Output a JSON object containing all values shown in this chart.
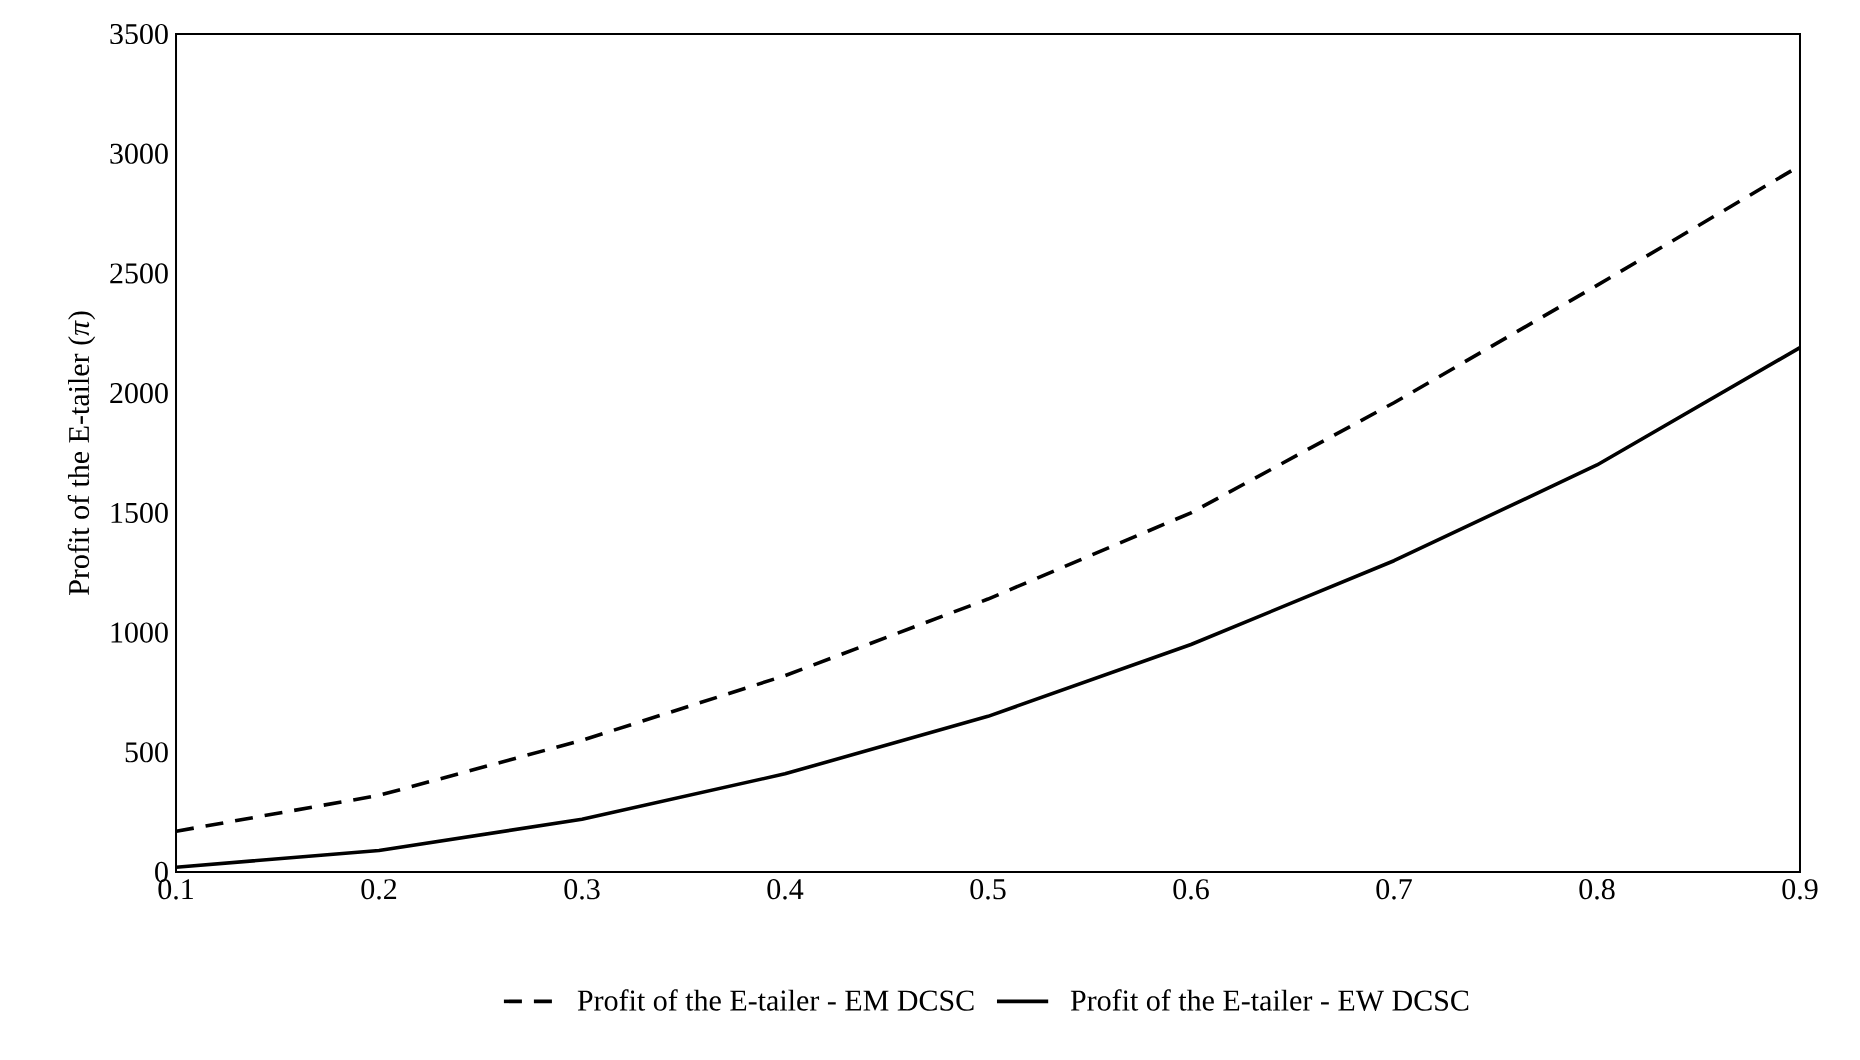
{
  "chart_data": {
    "type": "line",
    "ylabel": "Profit of the E-tailer (*π*)",
    "x": [
      0.1,
      0.2,
      0.3,
      0.4,
      0.5,
      0.6,
      0.7,
      0.8,
      0.9
    ],
    "xlim": [
      0.1,
      0.9
    ],
    "xticks": [
      0.1,
      0.2,
      0.3,
      0.4,
      0.5,
      0.6,
      0.7,
      0.8,
      0.9
    ],
    "ylim": [
      0,
      3500
    ],
    "yticks": [
      0,
      500,
      1000,
      1500,
      2000,
      2500,
      3000,
      3500
    ],
    "grid": false,
    "legend": "bottom",
    "marker": "none",
    "series": [
      {
        "name": "Profit of the E-tailer - EM DCSC",
        "color": "#000000",
        "line_style": "dashed",
        "values": [
          170,
          320,
          550,
          820,
          1140,
          1500,
          1960,
          2450,
          2950
        ]
      },
      {
        "name": "Profit of the E-tailer - EW DCSC",
        "color": "#000000",
        "line_style": "solid",
        "values": [
          20,
          90,
          220,
          410,
          650,
          950,
          1300,
          1700,
          2190
        ]
      }
    ]
  }
}
